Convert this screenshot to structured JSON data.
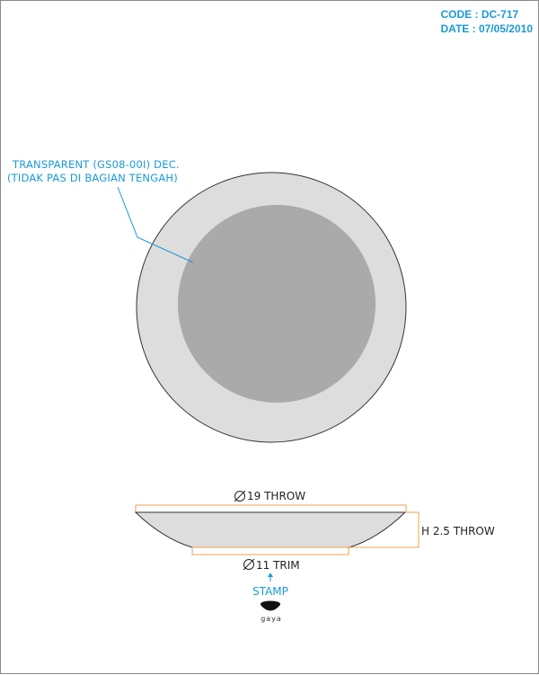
{
  "header": {
    "code": "CODE : DC-717",
    "date": "DATE : 07/05/2010"
  },
  "note": {
    "line1": "TRANSPARENT (GS08-00I) DEC.",
    "line2": "(TIDAK PAS DI BAGIAN TENGAH)"
  },
  "dimensions": {
    "diameter_top": "19 THROW",
    "height": "H 2.5 THROW",
    "diameter_bottom": "11 TRIM"
  },
  "stamp": {
    "label": "STAMP",
    "logo_text": "gaya"
  },
  "colors": {
    "accent": "#1a9ad6",
    "dimension_line": "#f0a050",
    "plate_rim": "#dddddd",
    "plate_center": "#aaaaaa"
  }
}
